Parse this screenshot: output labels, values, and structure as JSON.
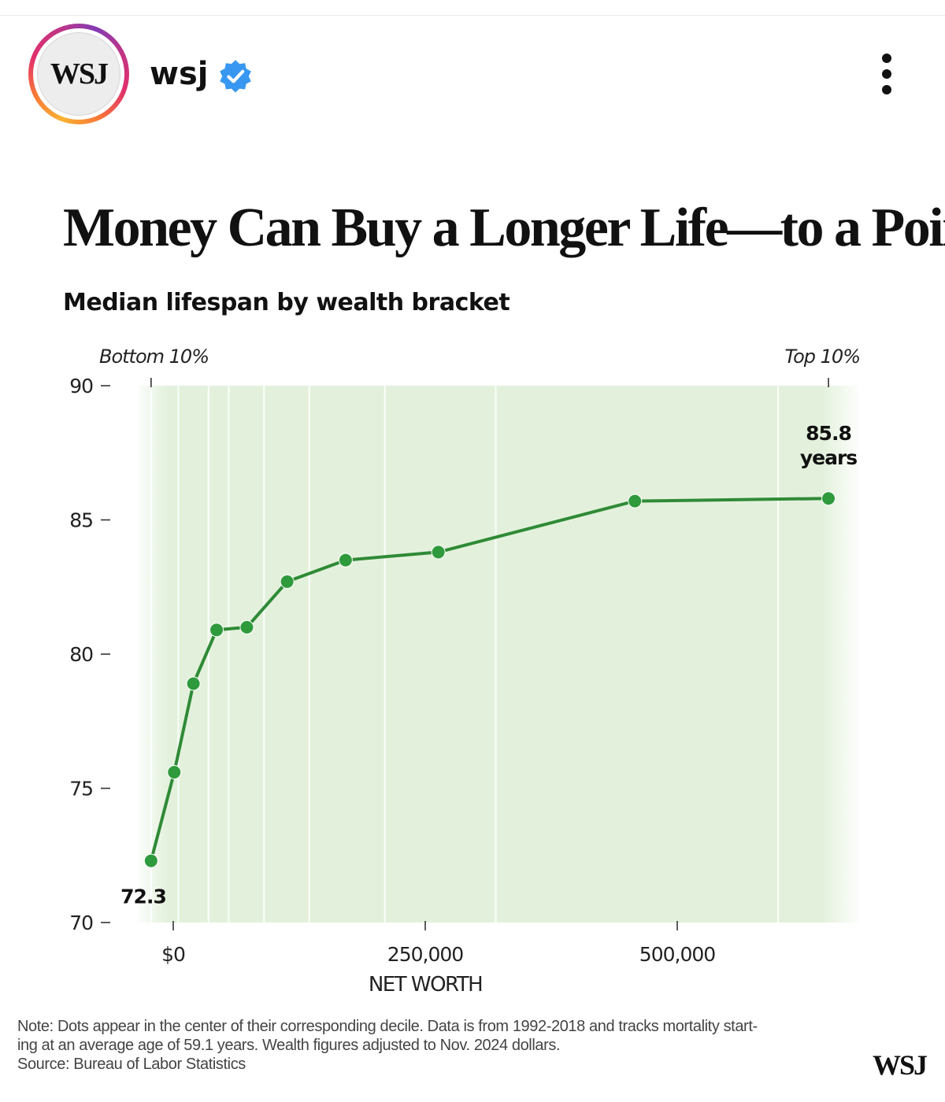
{
  "account": {
    "avatar_text": "WSJ",
    "handle": "wsj",
    "verified_icon": "verified-badge-icon",
    "menu_icon": "more-vertical-icon",
    "verified_color": "#3897f0"
  },
  "chart_data": {
    "type": "line",
    "title": "Money Can Buy a Longer Life—to a Point",
    "subtitle": "Median lifespan by wealth bracket",
    "xlabel": "NET WORTH",
    "ylabel": "",
    "xlim": [
      -45000,
      680000
    ],
    "ylim": [
      70,
      90
    ],
    "x_ticks": [
      0,
      250000,
      500000
    ],
    "x_tick_labels": [
      "$0",
      "250,000",
      "500,000"
    ],
    "y_ticks": [
      70,
      75,
      80,
      85,
      90
    ],
    "y_tick_labels": [
      "70",
      "75",
      "80",
      "85",
      "90"
    ],
    "decile_boundaries": [
      -22000,
      5000,
      35000,
      55000,
      90000,
      135000,
      210000,
      320000,
      600000
    ],
    "top_markers": [
      {
        "label": "Bottom 10%",
        "x": -22000
      },
      {
        "label": "Top 10%",
        "x": 650000
      }
    ],
    "series": [
      {
        "x": [
          -22000,
          1000,
          20000,
          43000,
          73000,
          113000,
          171000,
          263000,
          458000,
          650000
        ],
        "y": [
          72.3,
          75.6,
          78.9,
          80.9,
          81.0,
          82.7,
          83.5,
          83.8,
          85.7,
          85.8
        ]
      }
    ],
    "annotations": [
      {
        "text": "72.3",
        "x": -22000,
        "y": 72.3,
        "position": "below-left"
      },
      {
        "text": "85.8",
        "text2": "years",
        "x": 650000,
        "y": 85.8,
        "position": "above"
      }
    ],
    "grid": false,
    "background_band_color": "#e3f1dc",
    "line_color": "#2f8a36",
    "marker_color": "#2f9a3c"
  },
  "note": {
    "line1": "Note: Dots appear in the center of their corresponding decile. Data is from 1992-2018 and tracks mortality start-",
    "line2": "ing at an average age of 59.1 years. Wealth figures adjusted to Nov. 2024 dollars.",
    "line3": "Source: Bureau of Labor Statistics"
  },
  "footer_logo": "WSJ"
}
